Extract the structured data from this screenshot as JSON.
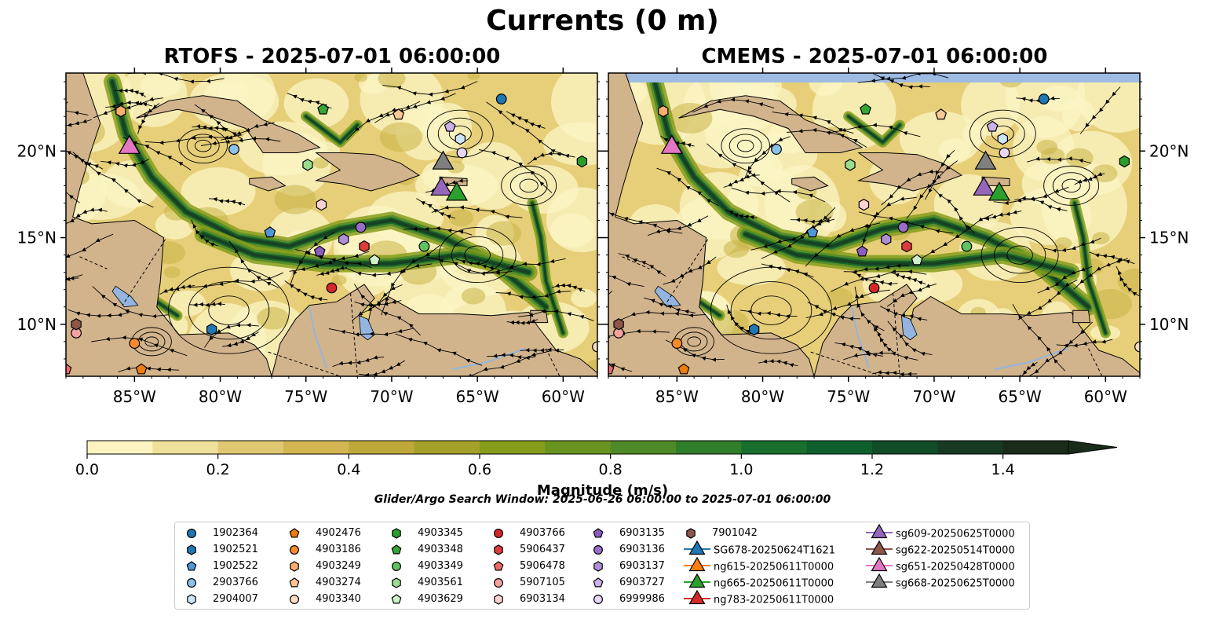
{
  "title": "Currents (0 m)",
  "panels": [
    {
      "title": "RTOFS - 2025-07-01 06:00:00"
    },
    {
      "title": "CMEMS - 2025-07-01 06:00:00"
    }
  ],
  "axes": {
    "x_ticks": [
      "85°W",
      "80°W",
      "75°W",
      "70°W",
      "65°W",
      "60°W"
    ],
    "y_ticks": [
      "20°N",
      "15°N",
      "10°N"
    ],
    "lon_range": [
      -89,
      -58
    ],
    "lat_range": [
      7,
      24.5
    ]
  },
  "colorbar": {
    "label": "Magnitude (m/s)",
    "ticks": [
      "0.0",
      "0.2",
      "0.4",
      "0.6",
      "0.8",
      "1.0",
      "1.2",
      "1.4"
    ],
    "range": [
      0,
      1.5
    ],
    "extend": "max",
    "colors": [
      "#fbf4c0",
      "#efe19a",
      "#e0c872",
      "#d3b552",
      "#bfa83a",
      "#a4a02a",
      "#869d1c",
      "#6a9420",
      "#4f8a28",
      "#2f7e2a",
      "#186f2e",
      "#0e5f2c",
      "#0f4c27",
      "#193a22",
      "#1b2b1a"
    ]
  },
  "search_window": "Glider/Argo Search Window: 2025-06-26 06:00:00 to 2025-07-01 06:00:00",
  "legend": {
    "columns": [
      [
        {
          "label": "1902364",
          "marker": "circle",
          "color": "#1f77b4"
        },
        {
          "label": "1902521",
          "marker": "hexagon",
          "color": "#1f77b4"
        },
        {
          "label": "1902522",
          "marker": "pentagon",
          "color": "#4f97d6"
        },
        {
          "label": "2903766",
          "marker": "circle",
          "color": "#8cc1ec"
        },
        {
          "label": "2904007",
          "marker": "hexagon",
          "color": "#cde5f8"
        }
      ],
      [
        {
          "label": "4902476",
          "marker": "pentagon",
          "color": "#ef7d0e"
        },
        {
          "label": "4903186",
          "marker": "circle",
          "color": "#f98a2c"
        },
        {
          "label": "4903249",
          "marker": "hexagon",
          "color": "#f9ae6f"
        },
        {
          "label": "4903274",
          "marker": "pentagon",
          "color": "#fbc796"
        },
        {
          "label": "4903340",
          "marker": "circle",
          "color": "#fddcc1"
        }
      ],
      [
        {
          "label": "4903345",
          "marker": "hexagon",
          "color": "#2a9d2a"
        },
        {
          "label": "4903348",
          "marker": "pentagon",
          "color": "#36a636"
        },
        {
          "label": "4903349",
          "marker": "circle",
          "color": "#5fc25f"
        },
        {
          "label": "4903561",
          "marker": "hexagon",
          "color": "#98dd8e"
        },
        {
          "label": "4903629",
          "marker": "pentagon",
          "color": "#d0f2cb"
        }
      ],
      [
        {
          "label": "4903766",
          "marker": "circle",
          "color": "#d62728"
        },
        {
          "label": "5906437",
          "marker": "hexagon",
          "color": "#de3c3c"
        },
        {
          "label": "5906478",
          "marker": "pentagon",
          "color": "#ee6a6a"
        },
        {
          "label": "5907105",
          "marker": "circle",
          "color": "#f5a1a1"
        },
        {
          "label": "6903134",
          "marker": "hexagon",
          "color": "#fbd2d2"
        }
      ],
      [
        {
          "label": "6903135",
          "marker": "pentagon",
          "color": "#8c5cbf"
        },
        {
          "label": "6903136",
          "marker": "circle",
          "color": "#9a6cc8"
        },
        {
          "label": "6903137",
          "marker": "hexagon",
          "color": "#b08ed8"
        },
        {
          "label": "6903727",
          "marker": "pentagon",
          "color": "#cdb2ea"
        },
        {
          "label": "6999986",
          "marker": "circle",
          "color": "#e8d8f6"
        }
      ],
      [
        {
          "label": "7901042",
          "marker": "hexagon",
          "color": "#8c564b"
        },
        {
          "label": "SG678-20250624T1621",
          "marker": "triangle",
          "color": "#1f77b4"
        },
        {
          "label": "ng615-20250611T0000",
          "marker": "triangle",
          "color": "#ff7f0e"
        },
        {
          "label": "ng665-20250611T0000",
          "marker": "triangle",
          "color": "#2ca02c"
        },
        {
          "label": "ng783-20250611T0000",
          "marker": "triangle",
          "color": "#d62728"
        }
      ],
      [
        {
          "label": "sg609-20250625T0000",
          "marker": "triangle",
          "color": "#9467bd"
        },
        {
          "label": "sg622-20250514T0000",
          "marker": "triangle",
          "color": "#8c564b"
        },
        {
          "label": "sg651-20250428T0000",
          "marker": "triangle",
          "color": "#e377c2"
        },
        {
          "label": "sg668-20250625T0000",
          "marker": "triangle",
          "color": "#7f7f7f"
        }
      ]
    ]
  },
  "observations": [
    {
      "id": "1902364",
      "lon": -63.6,
      "lat": 23.0
    },
    {
      "id": "4902476",
      "lon": -84.6,
      "lat": 7.4
    },
    {
      "id": "4903186",
      "lon": -85.0,
      "lat": 8.9
    },
    {
      "id": "4903249",
      "lon": -85.8,
      "lat": 22.3
    },
    {
      "id": "4903274",
      "lon": -69.6,
      "lat": 22.1
    },
    {
      "id": "4903340",
      "lon": -58.0,
      "lat": 8.7
    },
    {
      "id": "4903345",
      "lon": -58.9,
      "lat": 19.4
    },
    {
      "id": "4903348",
      "lon": -74.0,
      "lat": 22.4
    },
    {
      "id": "4903349",
      "lon": -68.1,
      "lat": 14.5
    },
    {
      "id": "4903561",
      "lon": -74.9,
      "lat": 19.2
    },
    {
      "id": "4903629",
      "lon": -71.0,
      "lat": 13.7
    },
    {
      "id": "4903766",
      "lon": -73.5,
      "lat": 12.1
    },
    {
      "id": "5906437",
      "lon": -71.6,
      "lat": 14.5
    },
    {
      "id": "5906478",
      "lon": -89.0,
      "lat": 7.4
    },
    {
      "id": "5907105",
      "lon": -88.4,
      "lat": 9.5
    },
    {
      "id": "6903134",
      "lon": -74.1,
      "lat": 16.9
    },
    {
      "id": "6903135",
      "lon": -74.2,
      "lat": 14.2
    },
    {
      "id": "6903136",
      "lon": -71.8,
      "lat": 15.6
    },
    {
      "id": "6903137",
      "lon": -72.8,
      "lat": 14.9
    },
    {
      "id": "6903727",
      "lon": -66.6,
      "lat": 21.4
    },
    {
      "id": "6999986",
      "lon": -65.9,
      "lat": 19.9
    },
    {
      "id": "7901042",
      "lon": -88.4,
      "lat": 10.0
    },
    {
      "id": "2903766",
      "lon": -79.2,
      "lat": 20.1
    },
    {
      "id": "1902522",
      "lon": -77.1,
      "lat": 15.3
    },
    {
      "id": "2904007",
      "lon": -66.0,
      "lat": 20.7
    },
    {
      "id": "1902521",
      "lon": -80.5,
      "lat": 9.7
    }
  ],
  "gliders": [
    {
      "id": "sg651-20250428T0000",
      "lon": -85.3,
      "lat": 20.2
    },
    {
      "id": "sg668-20250625T0000",
      "lon": -67.0,
      "lat": 19.3
    },
    {
      "id": "sg609-20250625T0000",
      "lon": -67.1,
      "lat": 17.8
    },
    {
      "id": "ng665-20250611T0000",
      "lon": -66.2,
      "lat": 17.5
    }
  ]
}
